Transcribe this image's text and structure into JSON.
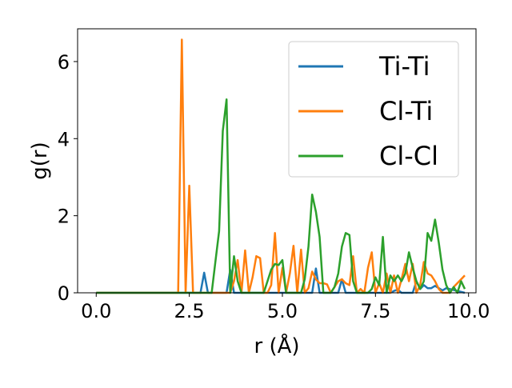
{
  "chart_data": {
    "type": "line",
    "title": "",
    "xlabel": "r (Å)",
    "ylabel": "g(r)",
    "xlim": [
      -0.5,
      10.2
    ],
    "ylim": [
      0,
      6.85
    ],
    "xticks": [
      0.0,
      2.5,
      5.0,
      7.5,
      10.0
    ],
    "xtick_labels": [
      "0.0",
      "2.5",
      "5.0",
      "7.5",
      "10.0"
    ],
    "yticks": [
      0,
      2,
      4,
      6
    ],
    "ytick_labels": [
      "0",
      "2",
      "4",
      "6"
    ],
    "grid": false,
    "legend_position": "top-right",
    "series": [
      {
        "name": "Ti-Ti",
        "color": "#1f77b4",
        "x": [
          0.0,
          2.8,
          2.9,
          3.0,
          3.5,
          3.6,
          3.7,
          5.8,
          5.9,
          6.0,
          6.5,
          6.6,
          6.7,
          7.0,
          7.5,
          7.9,
          8.0,
          8.1,
          8.2,
          8.5,
          8.6,
          8.7,
          8.8,
          8.9,
          9.0,
          9.1,
          9.2,
          9.3,
          9.4,
          9.9
        ],
        "y": [
          0.0,
          0.0,
          0.52,
          0.0,
          0.0,
          0.6,
          0.0,
          0.0,
          0.63,
          0.0,
          0.0,
          0.35,
          0.0,
          0.0,
          0.0,
          0.0,
          0.05,
          0.08,
          0.0,
          0.0,
          0.3,
          0.1,
          0.2,
          0.12,
          0.12,
          0.18,
          0.12,
          0.06,
          0.12,
          0.0
        ]
      },
      {
        "name": "Cl-Ti",
        "color": "#ff7f0e",
        "x": [
          0.0,
          2.2,
          2.3,
          2.4,
          2.5,
          2.6,
          2.7,
          3.6,
          3.7,
          3.8,
          3.9,
          4.0,
          4.1,
          4.2,
          4.3,
          4.4,
          4.5,
          4.6,
          4.7,
          4.8,
          4.9,
          5.0,
          5.1,
          5.2,
          5.3,
          5.4,
          5.5,
          5.6,
          5.7,
          5.8,
          5.9,
          6.0,
          6.1,
          6.2,
          6.3,
          6.4,
          6.5,
          6.6,
          6.7,
          6.8,
          6.9,
          7.0,
          7.1,
          7.2,
          7.3,
          7.4,
          7.5,
          7.6,
          7.7,
          7.8,
          7.9,
          8.0,
          8.1,
          8.2,
          8.3,
          8.4,
          8.5,
          8.6,
          8.7,
          8.8,
          8.9,
          9.0,
          9.1,
          9.2,
          9.3,
          9.4,
          9.5,
          9.6,
          9.7,
          9.8,
          9.9
        ],
        "y": [
          0.0,
          0.0,
          6.57,
          0.0,
          2.78,
          0.0,
          0.0,
          0.0,
          0.3,
          0.85,
          0.0,
          1.1,
          0.0,
          0.4,
          0.95,
          0.9,
          0.0,
          0.0,
          0.2,
          1.55,
          0.0,
          0.65,
          0.0,
          0.5,
          1.22,
          0.0,
          1.12,
          0.0,
          0.12,
          0.55,
          0.35,
          0.25,
          0.25,
          0.22,
          0.0,
          0.15,
          0.3,
          0.35,
          0.25,
          0.2,
          0.95,
          0.0,
          0.1,
          0.0,
          0.65,
          1.05,
          0.0,
          0.25,
          0.0,
          0.5,
          0.0,
          0.45,
          0.0,
          0.35,
          0.75,
          0.3,
          0.75,
          0.0,
          0.2,
          0.8,
          0.5,
          0.45,
          0.3,
          0.1,
          0.0,
          0.0,
          0.0,
          0.15,
          0.25,
          0.35,
          0.45
        ]
      },
      {
        "name": "Cl-Cl",
        "color": "#2ca02c",
        "x": [
          0.0,
          3.0,
          3.1,
          3.2,
          3.3,
          3.4,
          3.5,
          3.6,
          3.7,
          3.8,
          3.9,
          4.0,
          4.5,
          4.7,
          4.8,
          4.9,
          5.0,
          5.1,
          5.2,
          5.3,
          5.4,
          5.5,
          5.6,
          5.7,
          5.8,
          5.9,
          6.0,
          6.1,
          6.2,
          6.3,
          6.4,
          6.5,
          6.6,
          6.7,
          6.8,
          6.9,
          7.0,
          7.1,
          7.2,
          7.3,
          7.4,
          7.5,
          7.6,
          7.7,
          7.8,
          7.9,
          8.0,
          8.1,
          8.2,
          8.3,
          8.4,
          8.5,
          8.6,
          8.7,
          8.8,
          8.9,
          9.0,
          9.1,
          9.2,
          9.3,
          9.4,
          9.5,
          9.6,
          9.7,
          9.8,
          9.9
        ],
        "y": [
          0.0,
          0.0,
          0.0,
          0.8,
          1.6,
          4.2,
          5.02,
          0.0,
          0.95,
          0.3,
          0.0,
          0.0,
          0.0,
          0.6,
          0.75,
          0.72,
          0.85,
          0.0,
          0.0,
          0.0,
          0.0,
          0.0,
          0.35,
          1.2,
          2.55,
          2.1,
          1.45,
          0.0,
          0.0,
          0.0,
          0.15,
          0.5,
          1.2,
          1.55,
          1.5,
          0.3,
          0.0,
          0.0,
          0.0,
          0.0,
          0.1,
          0.4,
          0.2,
          1.45,
          0.0,
          0.45,
          0.3,
          0.45,
          0.3,
          0.5,
          1.05,
          0.65,
          0.3,
          0.1,
          0.3,
          1.55,
          1.35,
          1.9,
          1.3,
          0.6,
          0.2,
          0.0,
          0.15,
          0.0,
          0.3,
          0.1
        ]
      }
    ]
  }
}
